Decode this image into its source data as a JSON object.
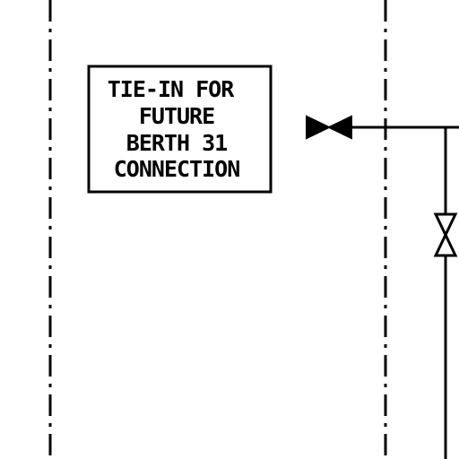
{
  "note": {
    "lines": [
      "TIE-IN FOR",
      "FUTURE",
      "BERTH 31",
      "CONNECTION"
    ]
  },
  "colors": {
    "line": "#000000",
    "background": "#ffffff"
  },
  "symbols": {
    "left_boundary": "dash-dot-line",
    "right_boundary": "dash-dot-line",
    "tie_in_valve": "gate-valve-icon",
    "branch_valve": "gate-valve-icon"
  }
}
